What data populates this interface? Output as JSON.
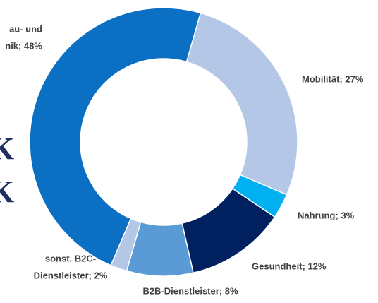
{
  "chart_data": {
    "type": "pie",
    "labels": [
      [
        "Mobilität; 27%"
      ],
      [
        "Nahrung; 3%"
      ],
      [
        "Gesundheit; 12%"
      ],
      [
        "B2B-Dienstleister; 8%"
      ],
      [
        "sonst. B2C-",
        "Dienstleister; 2%"
      ],
      [
        "au- und",
        "nik; 48%"
      ]
    ],
    "values": [
      27,
      3,
      12,
      8,
      2,
      48
    ],
    "colors": [
      "#b4c7e7",
      "#00b0f0",
      "#002060",
      "#5b9bd5",
      "#b4c7e7",
      "#0b6fc4"
    ],
    "annotations": [
      "K",
      "K"
    ]
  }
}
